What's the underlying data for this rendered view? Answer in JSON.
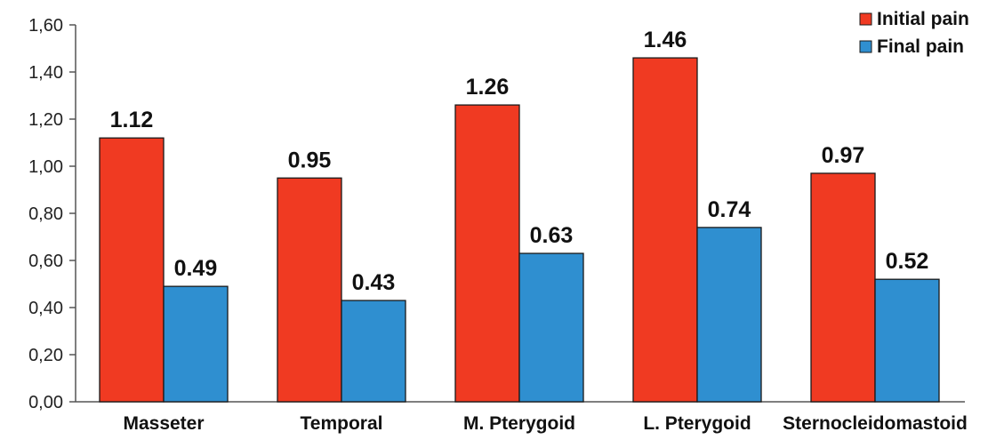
{
  "chart_data": {
    "type": "bar",
    "categories": [
      "Masseter",
      "Temporal",
      "M. Pterygoid",
      "L. Pterygoid",
      "Sternocleidomastoid"
    ],
    "series": [
      {
        "name": "Initial pain",
        "color": "#f03a22",
        "values": [
          1.12,
          0.95,
          1.26,
          1.46,
          0.97
        ],
        "labels": [
          "1.12",
          "0.95",
          "1.26",
          "1.46",
          "0.97"
        ]
      },
      {
        "name": "Final pain",
        "color": "#2f8fd0",
        "values": [
          0.49,
          0.43,
          0.63,
          0.74,
          0.52
        ],
        "labels": [
          "0.49",
          "0.43",
          "0.63",
          "0.74",
          "0.52"
        ]
      }
    ],
    "ylim": [
      0,
      1.6
    ],
    "yticks": [
      0,
      0.2,
      0.4,
      0.6,
      0.8,
      1.0,
      1.2,
      1.4,
      1.6
    ],
    "ytick_labels": [
      "0,00",
      "0,20",
      "0,40",
      "0,60",
      "0,80",
      "1,00",
      "1,20",
      "1,40",
      "1,60"
    ],
    "grid": false,
    "legend_position": "top-right",
    "title": "",
    "xlabel": "",
    "ylabel": ""
  }
}
